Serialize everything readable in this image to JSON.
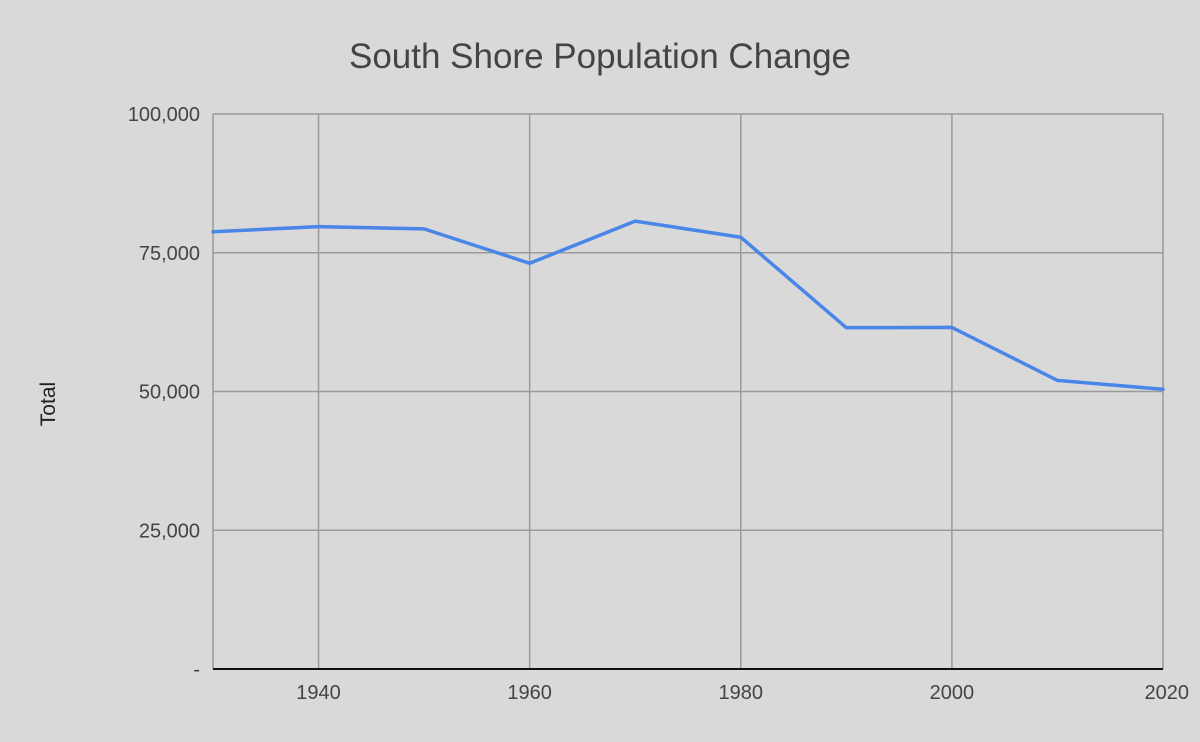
{
  "chart_data": {
    "type": "line",
    "title": "South Shore Population Change",
    "xlabel": "",
    "ylabel": "Total",
    "x": [
      1930,
      1940,
      1950,
      1960,
      1970,
      1980,
      1990,
      2000,
      2010,
      2020
    ],
    "series": [
      {
        "values": [
          78775,
          79700,
          79300,
          73100,
          80700,
          77800,
          61500,
          61550,
          52000,
          50400
        ]
      }
    ],
    "xlim": [
      1930,
      2020
    ],
    "ylim": [
      0,
      100000
    ],
    "x_ticks": [
      1940,
      1960,
      1980,
      2000,
      2020
    ],
    "x_tick_labels": [
      "1940",
      "1960",
      "1980",
      "2000",
      "2020"
    ],
    "y_ticks": [
      0,
      25000,
      50000,
      75000,
      100000
    ],
    "y_tick_labels": [
      "-",
      "25,000",
      "50,000",
      "75,000",
      "100,000"
    ],
    "grid": true,
    "legend": "none",
    "colors": {
      "background": "#d9d9d9",
      "series": "#4a86e8",
      "grid": "#9a9a9a",
      "title": "#444444"
    }
  }
}
